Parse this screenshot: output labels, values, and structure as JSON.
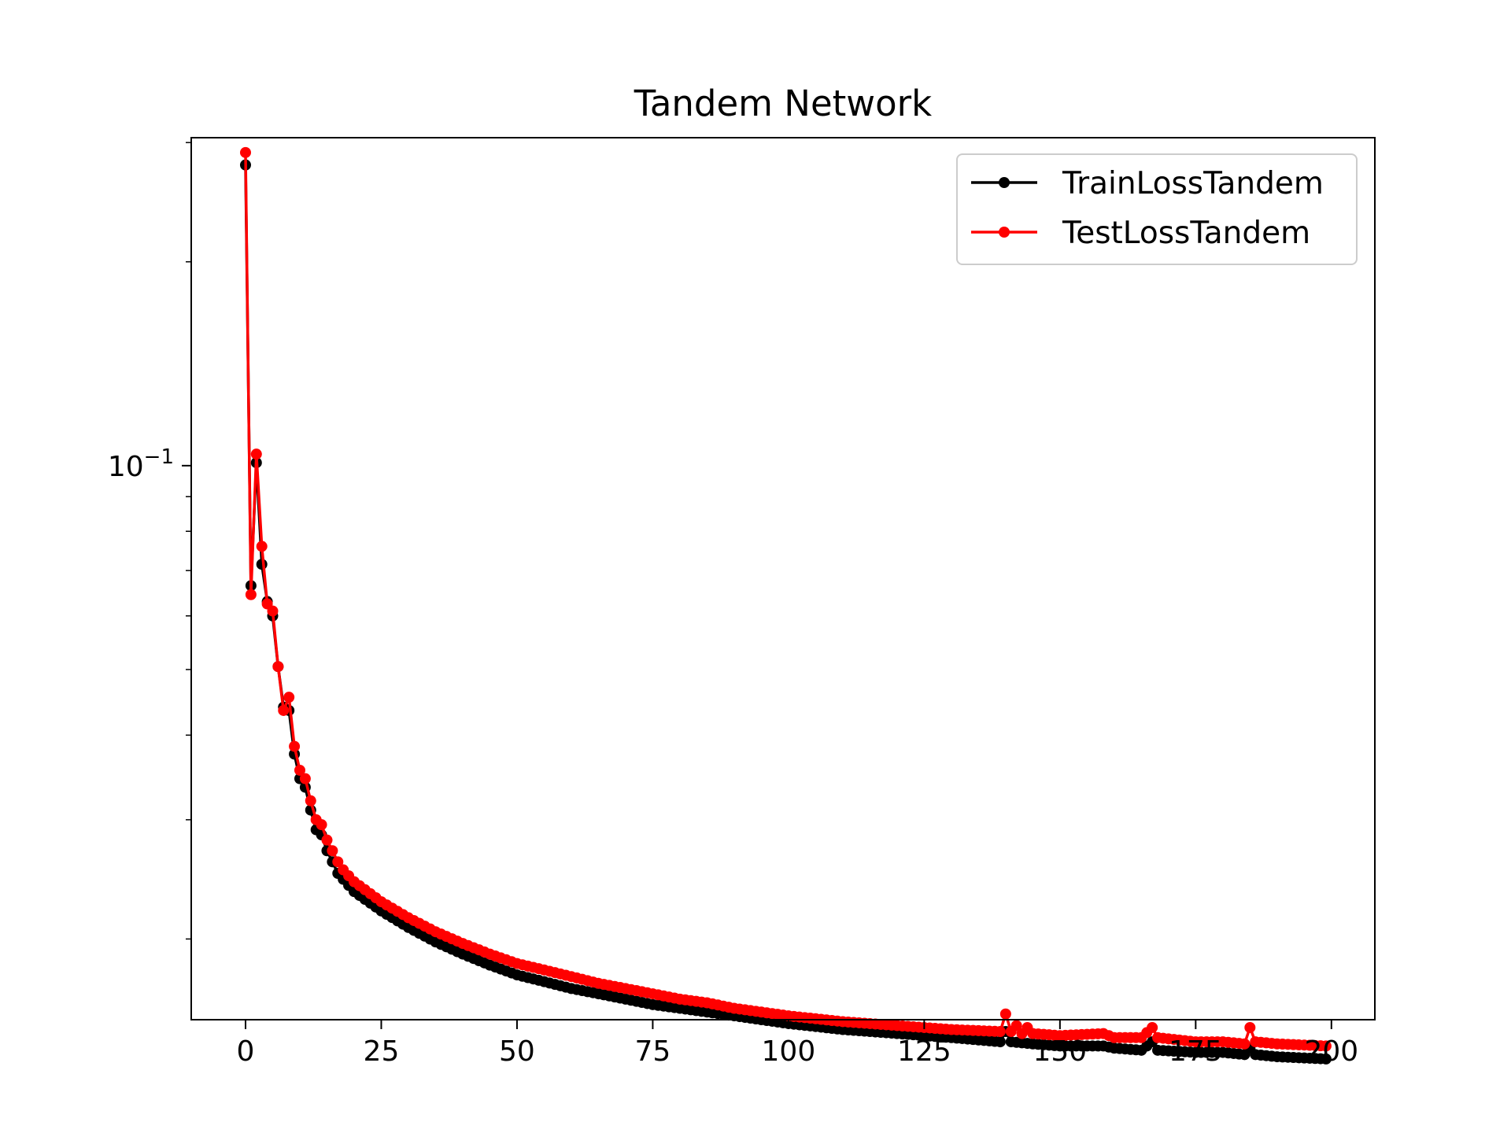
{
  "chart_data": {
    "type": "line",
    "title": "Tandem Network",
    "xlabel": "",
    "ylabel": "",
    "yscale": "log",
    "xlim": [
      -10,
      208
    ],
    "ylim": [
      0.0152,
      0.305
    ],
    "xticks": [
      0,
      25,
      50,
      75,
      100,
      125,
      150,
      175,
      200
    ],
    "xtick_labels": [
      "0",
      "25",
      "50",
      "75",
      "100",
      "125",
      "150",
      "175",
      "200"
    ],
    "yticks_major": [
      {
        "value": 0.1,
        "label_base": "10",
        "label_exp": "−1"
      }
    ],
    "yticks_minor": [
      0.02,
      0.03,
      0.04,
      0.05,
      0.06,
      0.07,
      0.08,
      0.09,
      0.2,
      0.3
    ],
    "grid": false,
    "legend": {
      "placement": "upper-right"
    },
    "series": [
      {
        "name": "TrainLossTandem",
        "color": "#000000",
        "marker": "dot",
        "key_points": [
          [
            0,
            0.278
          ],
          [
            1,
            0.0665
          ],
          [
            2,
            0.101
          ],
          [
            3,
            0.0715
          ],
          [
            4,
            0.063
          ],
          [
            5,
            0.06
          ],
          [
            6,
            0.0505
          ],
          [
            7,
            0.044
          ],
          [
            8,
            0.0435
          ],
          [
            9,
            0.0375
          ],
          [
            10,
            0.0345
          ],
          [
            11,
            0.0335
          ],
          [
            12,
            0.031
          ],
          [
            13,
            0.029
          ],
          [
            14,
            0.0285
          ],
          [
            15,
            0.027
          ],
          [
            16,
            0.026
          ],
          [
            17,
            0.025
          ],
          [
            18,
            0.0245
          ],
          [
            20,
            0.0235
          ],
          [
            25,
            0.022
          ],
          [
            30,
            0.0208
          ],
          [
            35,
            0.0198
          ],
          [
            40,
            0.019
          ],
          [
            45,
            0.0183
          ],
          [
            50,
            0.0177
          ],
          [
            55,
            0.0173
          ],
          [
            60,
            0.0169
          ],
          [
            65,
            0.0166
          ],
          [
            70,
            0.0163
          ],
          [
            75,
            0.016
          ],
          [
            80,
            0.0158
          ],
          [
            85,
            0.0156
          ],
          [
            90,
            0.0154
          ],
          [
            95,
            0.0152
          ],
          [
            100,
            0.015
          ],
          [
            110,
            0.0147
          ],
          [
            120,
            0.0145
          ],
          [
            130,
            0.0143
          ],
          [
            139,
            0.0141
          ],
          [
            140,
            0.0146
          ],
          [
            141,
            0.0141
          ],
          [
            145,
            0.014
          ],
          [
            150,
            0.0139
          ],
          [
            158,
            0.0139
          ],
          [
            160,
            0.0138
          ],
          [
            165,
            0.0137
          ],
          [
            167,
            0.0141
          ],
          [
            168,
            0.0137
          ],
          [
            175,
            0.0136
          ],
          [
            180,
            0.0136
          ],
          [
            184,
            0.0135
          ],
          [
            185,
            0.0138
          ],
          [
            186,
            0.0135
          ],
          [
            190,
            0.0134
          ],
          [
            199,
            0.0133
          ]
        ]
      },
      {
        "name": "TestLossTandem",
        "color": "#ff0000",
        "marker": "dot",
        "key_points": [
          [
            0,
            0.29
          ],
          [
            1,
            0.0645
          ],
          [
            2,
            0.104
          ],
          [
            3,
            0.076
          ],
          [
            4,
            0.0625
          ],
          [
            5,
            0.061
          ],
          [
            6,
            0.0505
          ],
          [
            7,
            0.0435
          ],
          [
            8,
            0.0455
          ],
          [
            9,
            0.0385
          ],
          [
            10,
            0.0355
          ],
          [
            11,
            0.0345
          ],
          [
            12,
            0.032
          ],
          [
            13,
            0.03
          ],
          [
            14,
            0.0295
          ],
          [
            15,
            0.028
          ],
          [
            16,
            0.027
          ],
          [
            17,
            0.026
          ],
          [
            18,
            0.0253
          ],
          [
            20,
            0.0243
          ],
          [
            25,
            0.0227
          ],
          [
            30,
            0.0215
          ],
          [
            35,
            0.0205
          ],
          [
            40,
            0.0197
          ],
          [
            45,
            0.019
          ],
          [
            50,
            0.0184
          ],
          [
            55,
            0.018
          ],
          [
            60,
            0.0176
          ],
          [
            65,
            0.0172
          ],
          [
            70,
            0.0169
          ],
          [
            75,
            0.0166
          ],
          [
            80,
            0.0163
          ],
          [
            85,
            0.0161
          ],
          [
            90,
            0.0158
          ],
          [
            95,
            0.0156
          ],
          [
            100,
            0.0154
          ],
          [
            110,
            0.0151
          ],
          [
            120,
            0.0149
          ],
          [
            130,
            0.0147
          ],
          [
            139,
            0.0146
          ],
          [
            140,
            0.0155
          ],
          [
            141,
            0.0146
          ],
          [
            142,
            0.0149
          ],
          [
            143,
            0.0145
          ],
          [
            144,
            0.0148
          ],
          [
            145,
            0.0145
          ],
          [
            150,
            0.0144
          ],
          [
            158,
            0.0145
          ],
          [
            160,
            0.0143
          ],
          [
            165,
            0.0143
          ],
          [
            167,
            0.0148
          ],
          [
            168,
            0.0143
          ],
          [
            175,
            0.0141
          ],
          [
            180,
            0.0141
          ],
          [
            184,
            0.014
          ],
          [
            185,
            0.0148
          ],
          [
            186,
            0.0141
          ],
          [
            190,
            0.014
          ],
          [
            199,
            0.0139
          ]
        ]
      }
    ]
  }
}
